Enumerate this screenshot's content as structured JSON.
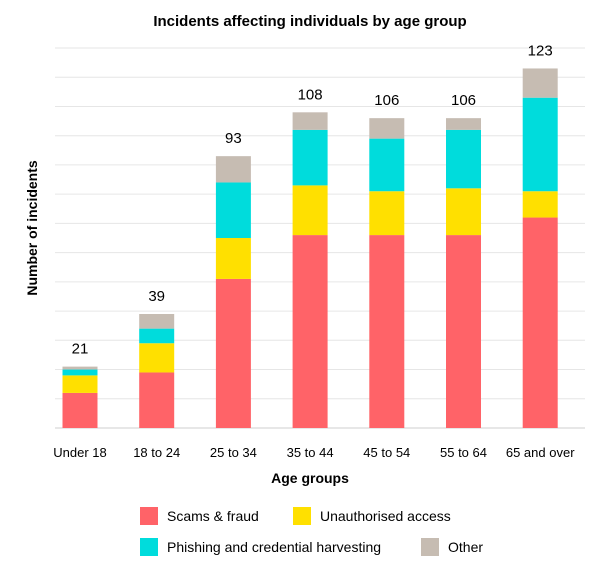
{
  "chart_data": {
    "type": "bar",
    "stacked": true,
    "title": "Incidents affecting individuals by age group",
    "xlabel": "Age groups",
    "ylabel": "Number of incidents",
    "ylim": [
      0,
      130
    ],
    "grid": true,
    "legend_position": "bottom",
    "categories": [
      "Under 18",
      "18 to 24",
      "25 to 34",
      "35 to 44",
      "45 to 54",
      "55 to 64",
      "65 and over"
    ],
    "totals": [
      "21",
      "39",
      "93",
      "108",
      "106",
      "106",
      "123"
    ],
    "series": [
      {
        "name": "Scams & fraud",
        "color": "#ff6368",
        "values": [
          12,
          19,
          51,
          66,
          66,
          66,
          72
        ]
      },
      {
        "name": "Unauthorised access",
        "color": "#ffe000",
        "values": [
          6,
          10,
          14,
          17,
          15,
          16,
          9
        ]
      },
      {
        "name": "Phishing and credential harvesting",
        "color": "#00dcdc",
        "values": [
          2,
          5,
          19,
          19,
          18,
          20,
          32
        ]
      },
      {
        "name": "Other",
        "color": "#c6bcb2",
        "values": [
          1,
          5,
          9,
          6,
          7,
          4,
          10
        ]
      }
    ]
  }
}
